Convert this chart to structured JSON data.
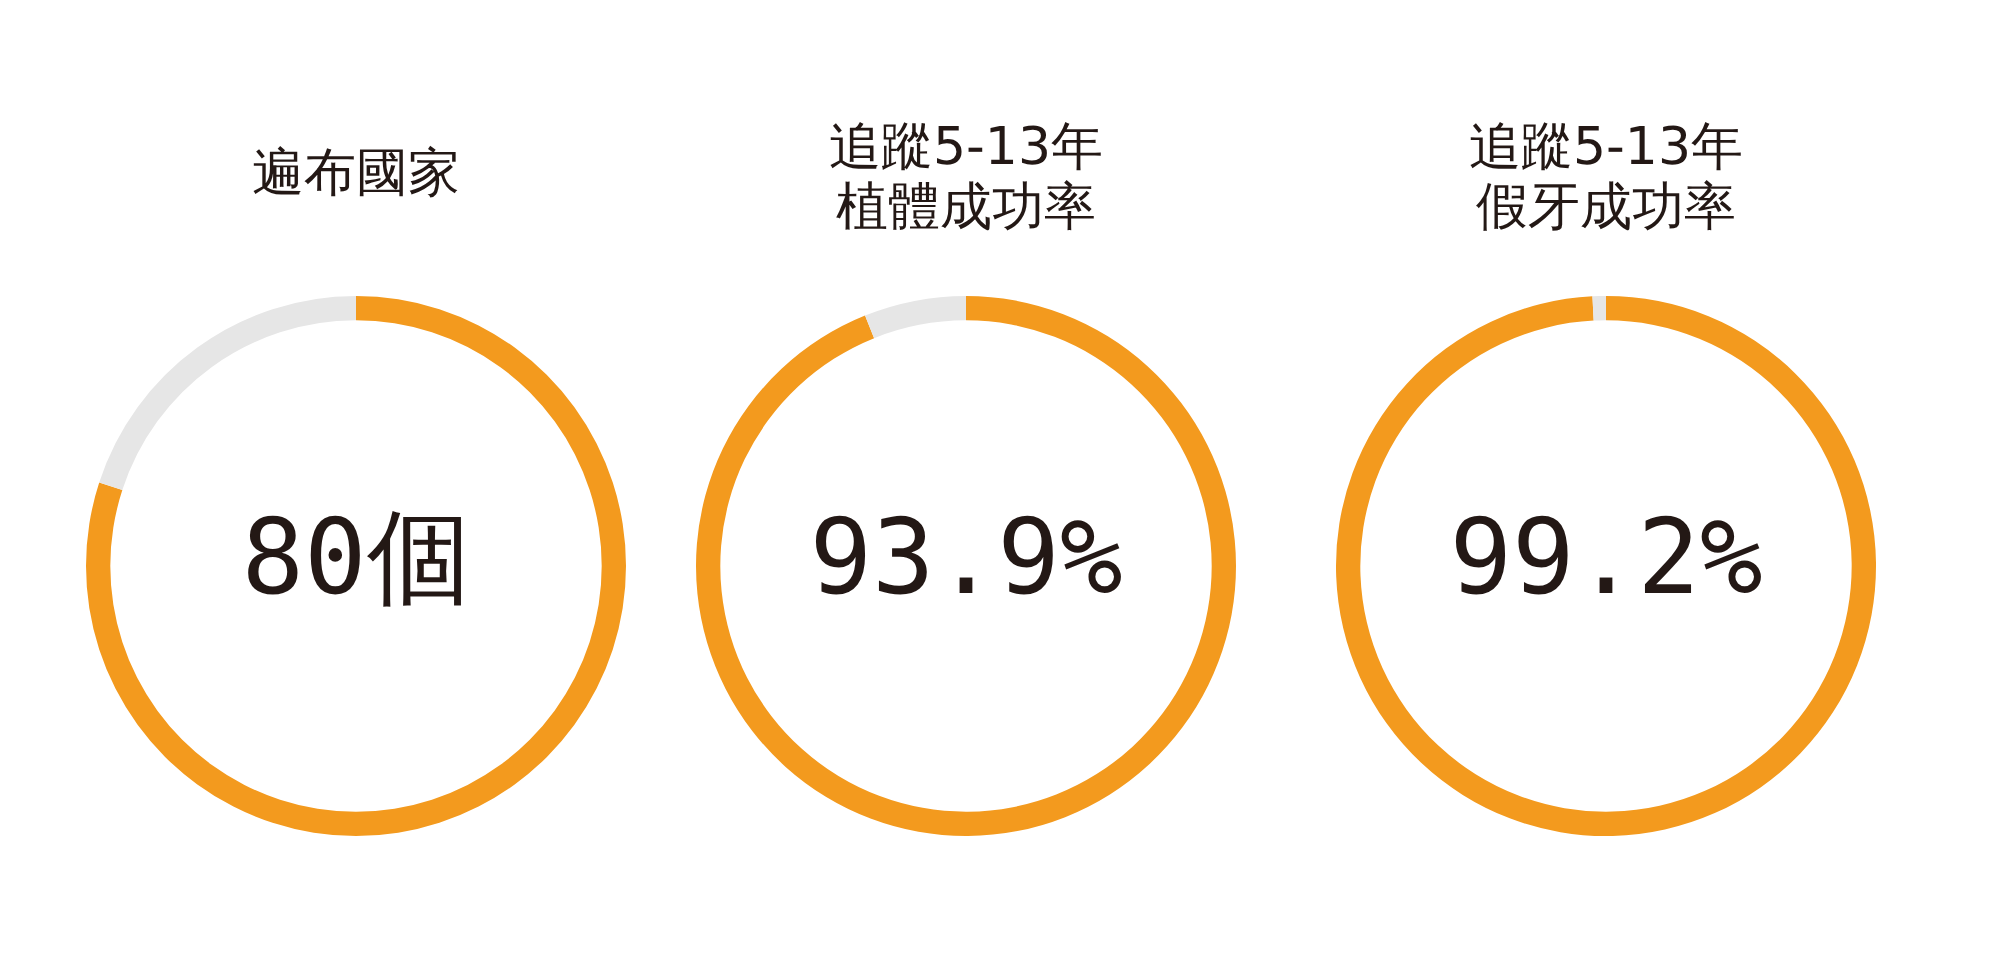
{
  "chart_data": [
    {
      "type": "donut",
      "title": "遍布國家",
      "categories": [
        null,
        null
      ],
      "values": [
        80,
        20
      ],
      "colors": [
        "#f39a1e",
        "#e6e6e6"
      ],
      "annotations": [
        "80個"
      ],
      "legend": false
    },
    {
      "type": "donut",
      "title": "追蹤5-13年",
      "subtitle": "植體成功率",
      "categories": [
        null,
        null
      ],
      "values": [
        93.9,
        6.1
      ],
      "colors": [
        "#f39a1e",
        "#e6e6e6"
      ],
      "annotations": [
        "93.9%"
      ],
      "legend": false
    },
    {
      "type": "donut",
      "title": "追蹤5-13年",
      "subtitle": "假牙成功率",
      "categories": [
        null,
        null
      ],
      "values": [
        99.2,
        0.8
      ],
      "colors": [
        "#f39a1e",
        "#e6e6e6"
      ],
      "annotations": [
        "99.2%"
      ],
      "legend": false
    }
  ]
}
